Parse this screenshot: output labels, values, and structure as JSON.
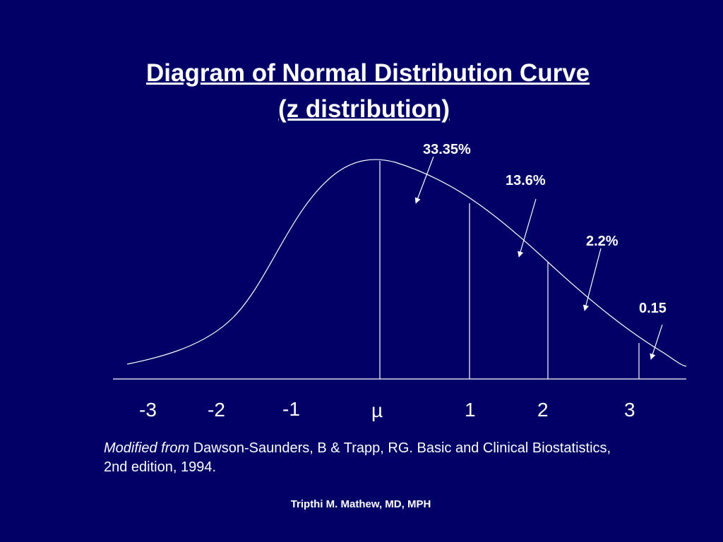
{
  "slide": {
    "title_line1": "Diagram of Normal Distribution Curve",
    "title_line2": "(z distribution)",
    "citation_prefix": "Modified from",
    "citation_text": " Dawson-Saunders, B & Trapp, RG. Basic and Clinical Biostatistics, 2nd edition, 1994.",
    "footer": "Tripthi M. Mathew, MD, MPH",
    "background_color": "#000066",
    "line_color": "#ffffff"
  },
  "diagram": {
    "percent_labels": [
      "33.35%",
      "13.6%",
      "2.2%",
      "0.15"
    ],
    "axis_labels": [
      "-3",
      "-2",
      "-1",
      "µ",
      "1",
      "2",
      "3"
    ]
  }
}
